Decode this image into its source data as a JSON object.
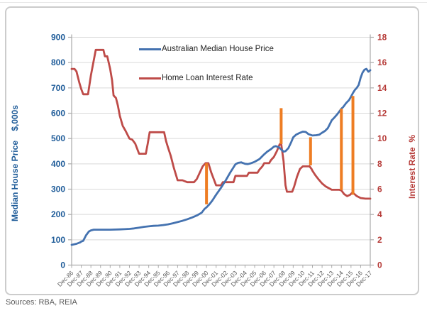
{
  "source_note": "Sources: RBA, REIA",
  "colors": {
    "price_line": "#4472b0",
    "rate_line": "#be4b48",
    "bar": "#ee7d23",
    "left_axis_text": "#1f5c99",
    "right_axis_text": "#b63b38",
    "x_axis_text": "#595959",
    "legend_text": "#262626",
    "gridline": "#d9d9d9",
    "axis_line": "#ababab",
    "source_text": "#595959"
  },
  "chart_data": {
    "type": "line",
    "title": "",
    "grid": "horizontal",
    "legend_position": "top-center",
    "x_tick_labels": [
      "Dec-86",
      "Dec-87",
      "Dec-88",
      "Dec-89",
      "Dec-90",
      "Dec-91",
      "Dec-92",
      "Dec-93",
      "Dec-94",
      "Dec-95",
      "Dec-96",
      "Dec-97",
      "Dec-98",
      "Dec-99",
      "Dec-00",
      "Dec-01",
      "Dec-02",
      "Dec-03",
      "Dec-04",
      "Dec-05",
      "Dec-06",
      "Dec-07",
      "Dec-08",
      "Dec-09",
      "Dec-10",
      "Dec-11",
      "Dec-12",
      "Dec-13",
      "Dec-14",
      "Dec-15",
      "Dec-16",
      "Dec-17"
    ],
    "left_axis": {
      "title": "Median House Price    $,000s",
      "min": 0,
      "max": 900,
      "tick_step": 100
    },
    "right_axis": {
      "title": "Interest Rate  %",
      "min": 0,
      "max": 18,
      "tick_step": 2
    },
    "series": [
      {
        "name": "Australian Median House Price",
        "axis": "left",
        "units": "$,000s",
        "color_key": "price_line",
        "points": [
          [
            0,
            80
          ],
          [
            0.5,
            84
          ],
          [
            0.9,
            90
          ],
          [
            1,
            93
          ],
          [
            1.2,
            96
          ],
          [
            1.5,
            118
          ],
          [
            1.8,
            133
          ],
          [
            2,
            137
          ],
          [
            2.3,
            140
          ],
          [
            3,
            140
          ],
          [
            4,
            140
          ],
          [
            5,
            141
          ],
          [
            5.5,
            142
          ],
          [
            6,
            143
          ],
          [
            6.5,
            145
          ],
          [
            7,
            148
          ],
          [
            7.5,
            151
          ],
          [
            8,
            153
          ],
          [
            8.5,
            155
          ],
          [
            9,
            156
          ],
          [
            9.5,
            158
          ],
          [
            10,
            161
          ],
          [
            10.5,
            165
          ],
          [
            11,
            170
          ],
          [
            11.5,
            175
          ],
          [
            12,
            181
          ],
          [
            12.5,
            188
          ],
          [
            13,
            196
          ],
          [
            13.5,
            207
          ],
          [
            13.8,
            222
          ],
          [
            14,
            228
          ],
          [
            14.3,
            240
          ],
          [
            14.6,
            255
          ],
          [
            15,
            278
          ],
          [
            15.5,
            305
          ],
          [
            16,
            335
          ],
          [
            16.5,
            368
          ],
          [
            17,
            398
          ],
          [
            17.3,
            404
          ],
          [
            17.6,
            406
          ],
          [
            18,
            400
          ],
          [
            18.3,
            399
          ],
          [
            18.6,
            402
          ],
          [
            19,
            408
          ],
          [
            19.5,
            419
          ],
          [
            20,
            438
          ],
          [
            20.3,
            448
          ],
          [
            20.7,
            458
          ],
          [
            21,
            468
          ],
          [
            21.2,
            470
          ],
          [
            21.5,
            466
          ],
          [
            21.8,
            455
          ],
          [
            22,
            448
          ],
          [
            22.2,
            450
          ],
          [
            22.5,
            462
          ],
          [
            22.8,
            486
          ],
          [
            23,
            505
          ],
          [
            23.3,
            515
          ],
          [
            23.6,
            521
          ],
          [
            24,
            527
          ],
          [
            24.3,
            526
          ],
          [
            24.6,
            517
          ],
          [
            25,
            512
          ],
          [
            25.4,
            513
          ],
          [
            25.7,
            515
          ],
          [
            26,
            523
          ],
          [
            26.3,
            530
          ],
          [
            26.6,
            541
          ],
          [
            27,
            572
          ],
          [
            27.3,
            584
          ],
          [
            27.6,
            597
          ],
          [
            28,
            618
          ],
          [
            28.2,
            625
          ],
          [
            28.5,
            640
          ],
          [
            28.8,
            652
          ],
          [
            29,
            665
          ],
          [
            29.2,
            680
          ],
          [
            29.4,
            692
          ],
          [
            29.6,
            700
          ],
          [
            29.8,
            712
          ],
          [
            30,
            740
          ],
          [
            30.2,
            760
          ],
          [
            30.4,
            772
          ],
          [
            30.6,
            775
          ],
          [
            30.8,
            764
          ],
          [
            30.9,
            766
          ],
          [
            31,
            770
          ]
        ]
      },
      {
        "name": "Home Loan Interest Rate",
        "axis": "right",
        "units": "%",
        "color_key": "rate_line",
        "points": [
          [
            0,
            15.5
          ],
          [
            0.3,
            15.5
          ],
          [
            0.5,
            15.3
          ],
          [
            0.8,
            14.4
          ],
          [
            1,
            13.9
          ],
          [
            1.2,
            13.5
          ],
          [
            1.7,
            13.5
          ],
          [
            2,
            15.0
          ],
          [
            2.2,
            15.8
          ],
          [
            2.5,
            17.0
          ],
          [
            3.3,
            17.0
          ],
          [
            3.45,
            16.5
          ],
          [
            3.7,
            16.5
          ],
          [
            4,
            15.5
          ],
          [
            4.2,
            14.6
          ],
          [
            4.35,
            13.4
          ],
          [
            4.6,
            13.2
          ],
          [
            4.8,
            12.6
          ],
          [
            5,
            11.8
          ],
          [
            5.3,
            11.0
          ],
          [
            5.6,
            10.6
          ],
          [
            6,
            10.0
          ],
          [
            6.3,
            9.9
          ],
          [
            6.6,
            9.6
          ],
          [
            7,
            8.8
          ],
          [
            7.7,
            8.8
          ],
          [
            7.9,
            9.6
          ],
          [
            8.1,
            10.5
          ],
          [
            9.6,
            10.5
          ],
          [
            9.8,
            9.8
          ],
          [
            10,
            9.3
          ],
          [
            10.3,
            8.6
          ],
          [
            10.6,
            7.7
          ],
          [
            11,
            6.7
          ],
          [
            11.5,
            6.7
          ],
          [
            12,
            6.55
          ],
          [
            12.7,
            6.55
          ],
          [
            13,
            6.8
          ],
          [
            13.3,
            7.3
          ],
          [
            13.6,
            7.8
          ],
          [
            13.9,
            8.05
          ],
          [
            14.2,
            8.05
          ],
          [
            14.5,
            7.3
          ],
          [
            14.8,
            6.7
          ],
          [
            15,
            6.3
          ],
          [
            15.5,
            6.3
          ],
          [
            15.7,
            6.55
          ],
          [
            16.8,
            6.55
          ],
          [
            17,
            7.05
          ],
          [
            18.2,
            7.05
          ],
          [
            18.4,
            7.3
          ],
          [
            19.3,
            7.3
          ],
          [
            19.5,
            7.55
          ],
          [
            19.8,
            7.8
          ],
          [
            20,
            8.05
          ],
          [
            20.5,
            8.05
          ],
          [
            20.7,
            8.3
          ],
          [
            21,
            8.55
          ],
          [
            21.3,
            9.0
          ],
          [
            21.6,
            9.55
          ],
          [
            21.75,
            9.6
          ],
          [
            22,
            8.2
          ],
          [
            22.2,
            6.3
          ],
          [
            22.35,
            5.8
          ],
          [
            22.9,
            5.8
          ],
          [
            23.1,
            6.2
          ],
          [
            23.4,
            7.0
          ],
          [
            23.7,
            7.6
          ],
          [
            24,
            7.8
          ],
          [
            24.7,
            7.8
          ],
          [
            24.9,
            7.6
          ],
          [
            25,
            7.45
          ],
          [
            25.3,
            7.1
          ],
          [
            25.6,
            6.8
          ],
          [
            26,
            6.45
          ],
          [
            26.4,
            6.2
          ],
          [
            27,
            5.95
          ],
          [
            27.8,
            5.95
          ],
          [
            28,
            5.9
          ],
          [
            28.3,
            5.6
          ],
          [
            28.6,
            5.45
          ],
          [
            28.9,
            5.55
          ],
          [
            29.1,
            5.7
          ],
          [
            29.3,
            5.65
          ],
          [
            29.6,
            5.45
          ],
          [
            30,
            5.3
          ],
          [
            30.5,
            5.25
          ],
          [
            31,
            5.25
          ]
        ]
      }
    ],
    "annotations": {
      "description": "orange vertical marker bars, values in left-axis units",
      "bars": [
        [
          14,
          240,
          402
        ],
        [
          21.75,
          478,
          620
        ],
        [
          24.8,
          394,
          505
        ],
        [
          28,
          296,
          618
        ],
        [
          29.2,
          278,
          668
        ]
      ]
    }
  }
}
